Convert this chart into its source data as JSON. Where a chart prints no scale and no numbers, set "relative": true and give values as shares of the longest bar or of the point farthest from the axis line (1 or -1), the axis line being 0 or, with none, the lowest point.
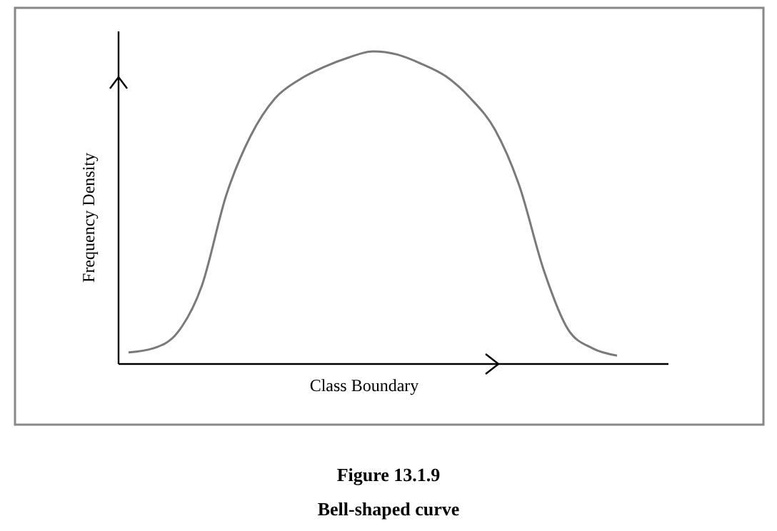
{
  "chart_data": {
    "type": "line",
    "relative": true,
    "title": "Figure 13.1.9",
    "subtitle": "Bell-shaped curve",
    "xlabel": "Class Boundary",
    "ylabel": "Frequency Density",
    "categories": [
      null,
      null,
      null,
      null,
      null,
      null,
      null,
      null,
      null,
      null,
      null,
      null,
      null,
      null,
      null,
      null,
      null,
      null,
      null,
      null,
      null
    ],
    "series": [
      {
        "color": "#7a7a7a",
        "values": [
          0.037,
          0.05,
          0.1,
          0.25,
          0.54,
          0.73,
          0.85,
          0.91,
          0.95,
          0.98,
          1,
          0.99,
          0.96,
          0.92,
          0.85,
          0.75,
          0.57,
          0.3,
          0.11,
          0.05,
          0.027
        ]
      }
    ]
  }
}
